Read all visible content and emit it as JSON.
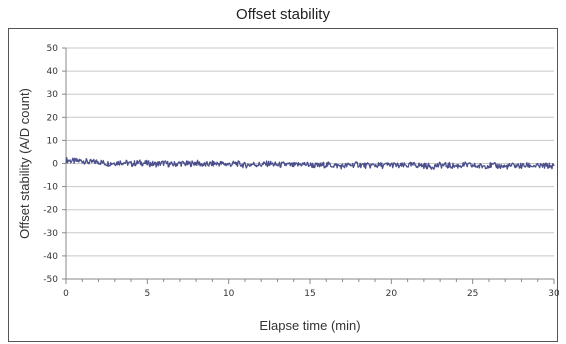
{
  "chart_data": {
    "type": "line",
    "title": "Offset stability",
    "xlabel": "Elapse time (min)",
    "ylabel": "Offset stability (A/D count)",
    "xlim": [
      0,
      30
    ],
    "ylim": [
      -50,
      50
    ],
    "xticks": [
      0,
      5,
      10,
      15,
      20,
      25,
      30
    ],
    "yticks": [
      50,
      40,
      30,
      20,
      10,
      0,
      -10,
      -20,
      -30,
      -40,
      -50
    ],
    "xtick_labels": [
      "0",
      "5",
      "10",
      "15",
      "20",
      "25",
      "30"
    ],
    "ytick_labels": [
      "50",
      "40",
      "30",
      "20",
      "10",
      "0",
      "-10",
      "-20",
      "-30",
      "-40",
      "-50"
    ],
    "grid": true,
    "colors": {
      "line": "#4b4f8c",
      "grid": "#c8c8c8",
      "axis": "#888888"
    },
    "series": [
      {
        "x": [
          0,
          0.5,
          1,
          1.5,
          2,
          2.5,
          3,
          3.5,
          4,
          4.5,
          5,
          5.5,
          6,
          6.5,
          7,
          7.5,
          8,
          8.5,
          9,
          9.5,
          10,
          10.5,
          11,
          11.5,
          12,
          12.5,
          13,
          13.5,
          14,
          14.5,
          15,
          15.5,
          16,
          16.5,
          17,
          17.5,
          18,
          18.5,
          19,
          19.5,
          20,
          20.5,
          21,
          21.5,
          22,
          22.5,
          23,
          23.5,
          24,
          24.5,
          25,
          25.5,
          26,
          26.5,
          27,
          27.5,
          28,
          28.5,
          29,
          29.5,
          30
        ],
        "values": [
          1.5,
          1.0,
          1.2,
          0.5,
          0.8,
          0.0,
          0.3,
          0.6,
          -0.2,
          0.4,
          0.0,
          -0.3,
          0.2,
          -0.5,
          0.1,
          -0.2,
          0.3,
          -0.6,
          -0.1,
          0.0,
          -0.4,
          0.0,
          -0.8,
          -0.3,
          -0.5,
          0.0,
          -0.7,
          -0.4,
          -0.9,
          -0.2,
          -0.6,
          -1.0,
          -0.5,
          -0.8,
          -1.2,
          -0.6,
          -0.4,
          -1.0,
          -0.7,
          -0.9,
          -0.5,
          -1.1,
          -0.8,
          -0.6,
          -1.0,
          -1.3,
          -0.7,
          -0.9,
          -1.1,
          -0.6,
          -1.0,
          -1.2,
          -0.8,
          -1.0,
          -1.4,
          -0.9,
          -1.1,
          -0.8,
          -1.2,
          -1.0,
          -1.1
        ]
      }
    ]
  }
}
